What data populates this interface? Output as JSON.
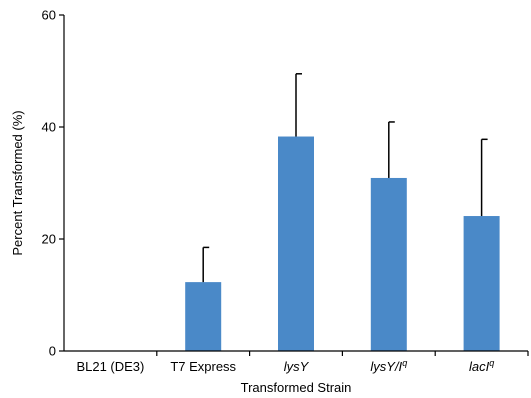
{
  "chart_data": {
    "type": "bar",
    "title": "",
    "xlabel": "Transformed Strain",
    "ylabel": "Percent Transformed (%)",
    "ylim": [
      0,
      60
    ],
    "yticks": [
      0,
      20,
      40,
      60
    ],
    "grid": false,
    "bar_color": "#4a89c8",
    "categories": [
      {
        "label": "BL21 (DE3)",
        "italic": false,
        "superscript": ""
      },
      {
        "label": "T7 Express",
        "italic": false,
        "superscript": ""
      },
      {
        "label": "lysY",
        "italic": true,
        "superscript": ""
      },
      {
        "label": "lysY/I",
        "italic": true,
        "superscript": "q"
      },
      {
        "label": "lacI",
        "italic": true,
        "superscript": "q"
      }
    ],
    "series": [
      {
        "values": [
          0,
          12.3,
          38.3,
          30.9,
          24.1
        ],
        "error_upper": [
          0,
          6.2,
          11.2,
          10.0,
          13.7
        ]
      }
    ]
  }
}
